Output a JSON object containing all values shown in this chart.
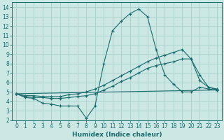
{
  "xlabel": "Humidex (Indice chaleur)",
  "bg_color": "#cce8e4",
  "grid_color": "#aacfcc",
  "line_color": "#1a6b6b",
  "xlim": [
    -0.5,
    23.5
  ],
  "ylim": [
    2,
    14.5
  ],
  "xticks": [
    0,
    1,
    2,
    3,
    4,
    5,
    6,
    7,
    8,
    9,
    10,
    11,
    12,
    13,
    14,
    15,
    16,
    17,
    18,
    19,
    20,
    21,
    22,
    23
  ],
  "yticks": [
    2,
    3,
    4,
    5,
    6,
    7,
    8,
    9,
    10,
    11,
    12,
    13,
    14
  ],
  "series": [
    {
      "x": [
        0,
        1,
        2,
        3,
        4,
        5,
        6,
        7,
        8,
        9,
        10,
        11,
        12,
        13,
        14,
        15,
        16,
        17,
        18,
        19,
        20,
        21,
        22,
        23
      ],
      "y": [
        4.8,
        4.4,
        4.3,
        3.8,
        3.7,
        3.5,
        3.5,
        3.5,
        2.2,
        3.5,
        8.0,
        11.5,
        12.5,
        13.3,
        13.8,
        13.0,
        9.5,
        6.8,
        5.8,
        5.0,
        5.0,
        5.5,
        5.3,
        5.2
      ],
      "marker": "+"
    },
    {
      "x": [
        0,
        1,
        2,
        3,
        4,
        5,
        6,
        7,
        8,
        9,
        10,
        11,
        12,
        13,
        14,
        15,
        16,
        17,
        18,
        19,
        20,
        21,
        22,
        23
      ],
      "y": [
        4.8,
        4.6,
        4.6,
        4.5,
        4.5,
        4.5,
        4.7,
        4.8,
        5.0,
        5.3,
        5.7,
        6.2,
        6.7,
        7.2,
        7.7,
        8.2,
        8.6,
        8.9,
        9.2,
        9.5,
        8.5,
        6.8,
        5.5,
        5.3
      ],
      "marker": "+"
    },
    {
      "x": [
        0,
        1,
        2,
        3,
        4,
        5,
        6,
        7,
        8,
        9,
        10,
        11,
        12,
        13,
        14,
        15,
        16,
        17,
        18,
        19,
        20,
        21,
        22,
        23
      ],
      "y": [
        4.8,
        4.5,
        4.4,
        4.4,
        4.3,
        4.3,
        4.4,
        4.5,
        4.6,
        4.8,
        5.2,
        5.6,
        6.1,
        6.5,
        7.0,
        7.5,
        7.8,
        8.0,
        8.2,
        8.5,
        8.5,
        6.2,
        5.5,
        5.2
      ],
      "marker": "+"
    },
    {
      "x": [
        0,
        23
      ],
      "y": [
        4.8,
        5.2
      ],
      "marker": null
    }
  ]
}
